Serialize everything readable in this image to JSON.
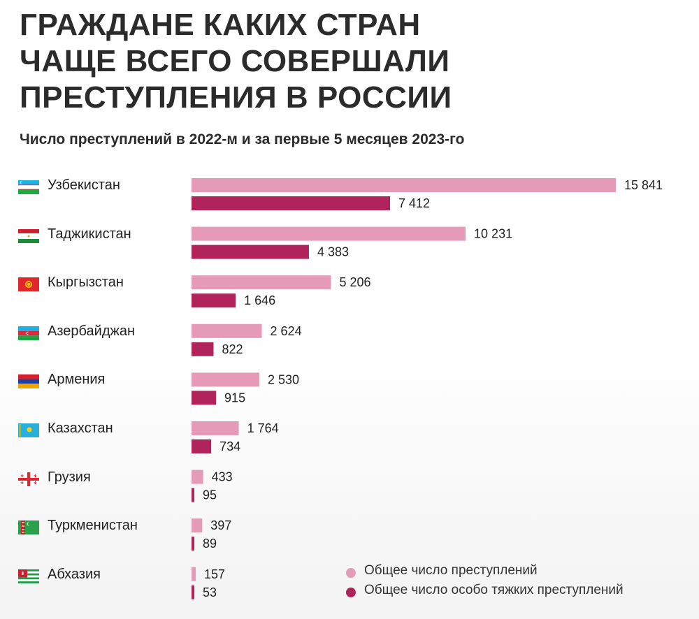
{
  "title_lines": [
    "ГРАЖДАНЕ КАКИХ СТРАН",
    "ЧАЩЕ ВСЕГО СОВЕРШАЛИ",
    "ПРЕСТУПЛЕНИЯ В РОССИИ"
  ],
  "subtitle": "Число преступлений в 2022-м и за первые 5 месяцев 2023-го",
  "colors": {
    "total": "#e59ab7",
    "grave": "#b0245b",
    "label_text": "#222222"
  },
  "legend": [
    {
      "label": "Общее число преступлений",
      "color": "#e59ab7"
    },
    {
      "label": "Общее число особо тяжких преступлений",
      "color": "#b0245b"
    }
  ],
  "chart_data": {
    "type": "bar",
    "orientation": "horizontal",
    "categories": [
      "Узбекистан",
      "Таджикистан",
      "Кыргызстан",
      "Азербайджан",
      "Армения",
      "Казахстан",
      "Грузия",
      "Туркменистан",
      "Абхазия"
    ],
    "flag_icons": [
      "uzbekistan-flag-icon",
      "tajikistan-flag-icon",
      "kyrgyzstan-flag-icon",
      "azerbaijan-flag-icon",
      "armenia-flag-icon",
      "kazakhstan-flag-icon",
      "georgia-flag-icon",
      "turkmenistan-flag-icon",
      "abkhazia-flag-icon"
    ],
    "series": [
      {
        "name": "Общее число преступлений",
        "values": [
          15841,
          10231,
          5206,
          2624,
          2530,
          1764,
          433,
          397,
          157
        ],
        "labels": [
          "15 841",
          "10 231",
          "5 206",
          "2 624",
          "2 530",
          "1 764",
          "433",
          "397",
          "157"
        ]
      },
      {
        "name": "Общее число особо тяжких преступлений",
        "values": [
          7412,
          4383,
          1646,
          822,
          915,
          734,
          95,
          89,
          53
        ],
        "labels": [
          "7 412",
          "4 383",
          "1 646",
          "822",
          "915",
          "734",
          "95",
          "89",
          "53"
        ]
      }
    ],
    "xlim": [
      0,
      15841
    ],
    "grid": false,
    "legend_position": "bottom-right"
  }
}
